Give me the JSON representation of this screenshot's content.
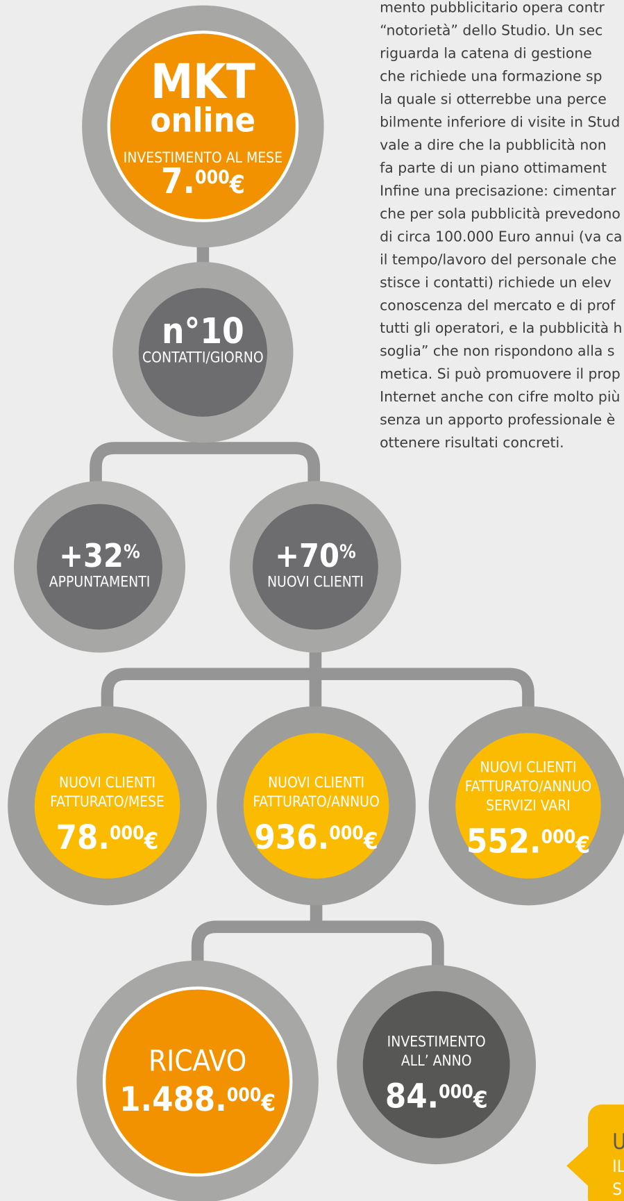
{
  "paragraph": {
    "lines": [
      "mento pubblicitario opera contr",
      "“notorietà” dello Studio. Un sec",
      "riguarda la catena di gestione",
      "che richiede una formazione sp",
      "la quale si otterrebbe una perce",
      "bilmente inferiore di visite in Stud",
      "vale a dire che la pubblicità non",
      "fa parte di un piano ottimament",
      "Infine una precisazione: cimentar",
      "che per sola pubblicità prevedono",
      "di circa 100.000 Euro annui (va ca",
      "il tempo/lavoro del personale che",
      "stisce i contatti) richiede un elev",
      "conoscenza del mercato e di prof",
      "tutti gli operatori, e la pubblicità h",
      "soglia” che non rispondono alla s",
      "metica. Si può promuovere il prop",
      "Internet anche con cifre molto più",
      "senza un apporto professionale è",
      "ottenere risultati concreti."
    ]
  },
  "nodes": [
    {
      "title": "MKT",
      "subtitle": "online",
      "label": "INVESTIMENTO AL MESE",
      "amount": {
        "main": "7.",
        "sup": "000",
        "currency": "€"
      }
    },
    {
      "title": "n°10",
      "label": "CONTATTI/GIORNO"
    },
    {
      "title": "+32",
      "sup": "%",
      "label": "APPUNTAMENTI"
    },
    {
      "title": "+70",
      "sup": "%",
      "label": "NUOVI CLIENTI"
    },
    {
      "lines": [
        "NUOVI CLIENTI",
        "FATTURATO/MESE"
      ],
      "amount": {
        "main": "78.",
        "sup": "000",
        "currency": "€"
      }
    },
    {
      "lines": [
        "NUOVI CLIENTI",
        "FATTURATO/ANNUO"
      ],
      "amount": {
        "main": "936.",
        "sup": "000",
        "currency": "€"
      }
    },
    {
      "lines": [
        "NUOVI CLIENTI",
        "FATTURATO/ANNUO",
        "SERVIZI VARI"
      ],
      "amount": {
        "main": "552.",
        "sup": "000",
        "currency": "€"
      }
    },
    {
      "label": "RICAVO",
      "amount": {
        "main": "1.488.",
        "sup": "000",
        "currency": "€"
      }
    },
    {
      "lines": [
        "INVESTIMENTO",
        "ALL’ ANNO"
      ],
      "amount": {
        "main": "84.",
        "sup": "000",
        "currency": "€"
      }
    }
  ],
  "callout": {
    "lines": [
      "U",
      "IL",
      "S"
    ]
  }
}
